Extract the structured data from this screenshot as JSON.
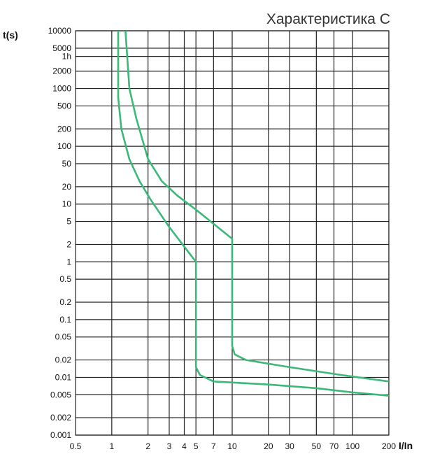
{
  "chart_data": {
    "type": "line",
    "title": "Характеристика C",
    "xlabel": "I/In",
    "ylabel": "t(s)",
    "x_scale": "log",
    "y_scale": "log",
    "xlim": [
      0.5,
      200
    ],
    "ylim": [
      0.001,
      10000
    ],
    "grid": true,
    "x_ticks": [
      {
        "value": 0.5,
        "label": "0.5"
      },
      {
        "value": 1,
        "label": "1"
      },
      {
        "value": 2,
        "label": "2"
      },
      {
        "value": 3,
        "label": "3"
      },
      {
        "value": 4,
        "label": "4"
      },
      {
        "value": 5,
        "label": "5"
      },
      {
        "value": 7,
        "label": "7"
      },
      {
        "value": 10,
        "label": "10"
      },
      {
        "value": 20,
        "label": "20"
      },
      {
        "value": 30,
        "label": "30"
      },
      {
        "value": 50,
        "label": "50"
      },
      {
        "value": 70,
        "label": "70"
      },
      {
        "value": 100,
        "label": "100"
      },
      {
        "value": 200,
        "label": "200"
      }
    ],
    "y_ticks": [
      {
        "value": 10000,
        "label": "10000"
      },
      {
        "value": 5000,
        "label": "5000"
      },
      {
        "value": 3600,
        "label": "1h"
      },
      {
        "value": 2000,
        "label": "2000"
      },
      {
        "value": 1000,
        "label": "1000"
      },
      {
        "value": 500,
        "label": "500"
      },
      {
        "value": 200,
        "label": "200"
      },
      {
        "value": 100,
        "label": "100"
      },
      {
        "value": 50,
        "label": "50"
      },
      {
        "value": 20,
        "label": "20"
      },
      {
        "value": 10,
        "label": "10"
      },
      {
        "value": 5,
        "label": "5"
      },
      {
        "value": 2,
        "label": "2"
      },
      {
        "value": 1,
        "label": "1"
      },
      {
        "value": 0.5,
        "label": "0.5"
      },
      {
        "value": 0.2,
        "label": "0.2"
      },
      {
        "value": 0.1,
        "label": "0.1"
      },
      {
        "value": 0.05,
        "label": "0.05"
      },
      {
        "value": 0.02,
        "label": "0.02"
      },
      {
        "value": 0.01,
        "label": "0.01"
      },
      {
        "value": 0.005,
        "label": "0.005"
      },
      {
        "value": 0.002,
        "label": "0.002"
      },
      {
        "value": 0.001,
        "label": "0.001"
      }
    ],
    "series": [
      {
        "color": "#3cb878",
        "points": [
          [
            1.13,
            10000
          ],
          [
            1.13,
            700
          ],
          [
            1.2,
            200
          ],
          [
            1.4,
            60
          ],
          [
            1.7,
            25
          ],
          [
            2.1,
            12
          ],
          [
            3.0,
            4
          ],
          [
            5.0,
            1.0
          ],
          [
            5.0,
            0.015
          ],
          [
            5.4,
            0.011
          ],
          [
            7.0,
            0.0085
          ],
          [
            20,
            0.0075
          ],
          [
            50,
            0.0065
          ],
          [
            100,
            0.0055
          ],
          [
            200,
            0.0048
          ]
        ]
      },
      {
        "color": "#3cb878",
        "points": [
          [
            1.3,
            10000
          ],
          [
            1.4,
            1000
          ],
          [
            1.6,
            300
          ],
          [
            2.0,
            60
          ],
          [
            2.6,
            25
          ],
          [
            3.5,
            14
          ],
          [
            5.0,
            8
          ],
          [
            10,
            2.5
          ],
          [
            10,
            0.035
          ],
          [
            10.5,
            0.025
          ],
          [
            13,
            0.02
          ],
          [
            30,
            0.015
          ],
          [
            80,
            0.011
          ],
          [
            200,
            0.0085
          ]
        ]
      }
    ]
  }
}
